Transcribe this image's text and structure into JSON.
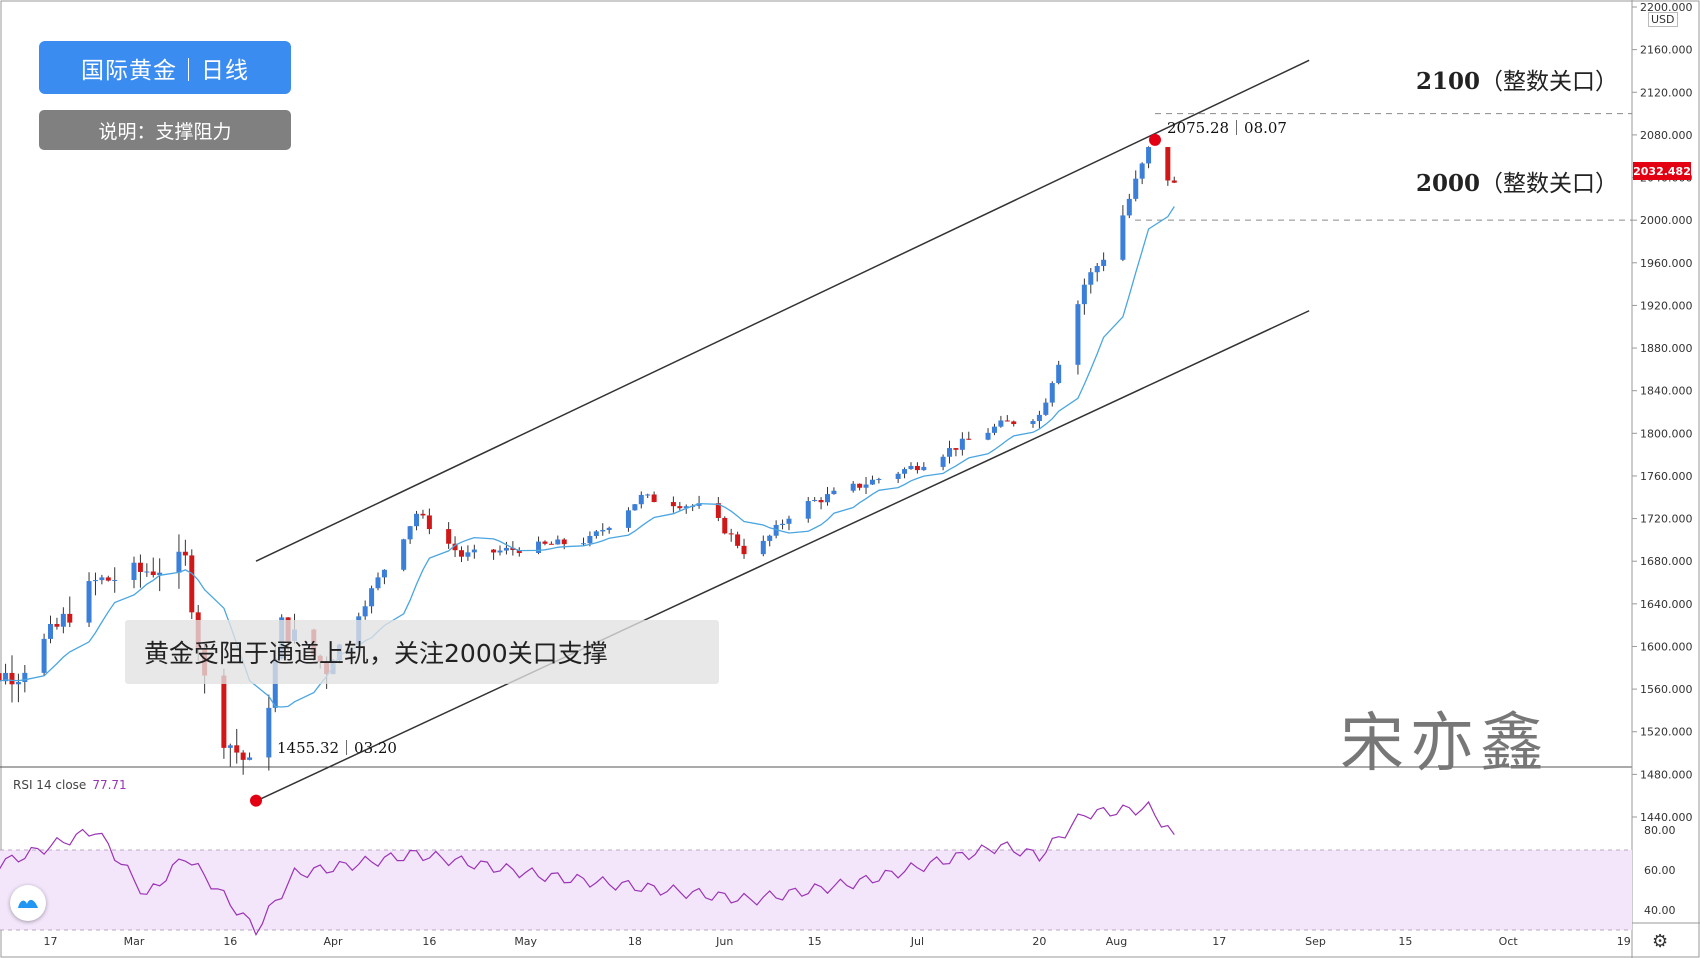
{
  "header": {
    "title_badge": "国际黄金｜日线",
    "note_badge": "说明：支撑阻力"
  },
  "annotations": {
    "callout_text": "黄金受阻于通道上轨，关注2000关口支撑",
    "level_2100": {
      "num": "2100",
      "text": "（整数关口）"
    },
    "level_2000": {
      "num": "2000",
      "text": "（整数关口）"
    },
    "high_point_label": "2075.28｜08.07",
    "low_point_label": "1455.32｜03.20",
    "watermark": "宋亦鑫"
  },
  "price_axis": {
    "currency": "USD",
    "current_price": "2032.482",
    "current_price_color": "#e30012"
  },
  "rsi": {
    "label": "RSI 14 close",
    "value": "77.71"
  },
  "colors": {
    "up": "#3b7fd9",
    "down": "#d01818",
    "ma": "#4ba6e0",
    "rsi_line": "#9b33b5",
    "rsi_band": "#f3e6fb",
    "badge_blue": "#3b8cf0",
    "badge_gray": "#808080",
    "marker": "#e30012"
  },
  "chart_data": [
    {
      "type": "candlestick",
      "title": "国际黄金｜日线",
      "y_axis": {
        "range": [
          1440,
          2200
        ],
        "ticks": [
          "2200.000",
          "2160.000",
          "2120.000",
          "2080.000",
          "2040.000",
          "2000.000",
          "1960.000",
          "1920.000",
          "1880.000",
          "1840.000",
          "1800.000",
          "1760.000",
          "1720.000",
          "1680.000",
          "1640.000",
          "1600.000",
          "1560.000",
          "1520.000",
          "1480.000",
          "1440.000"
        ]
      },
      "x_axis": {
        "tick_labels": [
          "17",
          "Mar",
          "16",
          "Apr",
          "16",
          "May",
          "18",
          "Jun",
          "15",
          "Jul",
          "20",
          "Aug",
          "17",
          "Sep",
          "15",
          "Oct",
          "19"
        ]
      },
      "anchor_points": [
        {
          "date": "01-31",
          "close": 1568
        },
        {
          "date": "02-12",
          "close": 1575
        },
        {
          "date": "02-24",
          "close": 1660
        },
        {
          "date": "03-09",
          "close": 1680
        },
        {
          "date": "03-13",
          "close": 1530
        },
        {
          "date": "03-20",
          "close": 1480,
          "low": 1455.32
        },
        {
          "date": "03-24",
          "close": 1620
        },
        {
          "date": "03-31",
          "close": 1580
        },
        {
          "date": "04-14",
          "close": 1725
        },
        {
          "date": "04-21",
          "close": 1685
        },
        {
          "date": "05-11",
          "close": 1700
        },
        {
          "date": "05-19",
          "close": 1740
        },
        {
          "date": "05-29",
          "close": 1730
        },
        {
          "date": "06-05",
          "close": 1683
        },
        {
          "date": "06-12",
          "close": 1730
        },
        {
          "date": "06-19",
          "close": 1745
        },
        {
          "date": "07-01",
          "close": 1770
        },
        {
          "date": "07-14",
          "close": 1808
        },
        {
          "date": "07-20",
          "close": 1817
        },
        {
          "date": "07-27",
          "close": 1940
        },
        {
          "date": "07-31",
          "close": 1975
        },
        {
          "date": "08-06",
          "close": 2065,
          "high": 2075.28
        },
        {
          "date": "08-10",
          "close": 2032
        }
      ],
      "highlights": [
        {
          "label": "2075.28｜08.07",
          "value": 2075.28
        },
        {
          "label": "1455.32｜03.20",
          "value": 1455.32
        }
      ],
      "levels": [
        {
          "label": "2100（整数关口）",
          "value": 2100
        },
        {
          "label": "2000（整数关口）",
          "value": 2000
        }
      ],
      "channel": {
        "upper": [
          {
            "date": "03-20",
            "value": 1680
          },
          {
            "date": "08-31",
            "value": 2150
          }
        ],
        "lower": [
          {
            "date": "03-20",
            "value": 1455
          },
          {
            "date": "08-31",
            "value": 1915
          }
        ]
      }
    },
    {
      "type": "line",
      "title": "RSI 14 close",
      "value_shown": 77.71,
      "y_axis": {
        "ticks": [
          "80.00",
          "60.00",
          "40.00"
        ]
      },
      "band": [
        30,
        70
      ],
      "anchor_points": [
        {
          "date": "02-03",
          "value": 56
        },
        {
          "date": "02-24",
          "value": 80
        },
        {
          "date": "03-03",
          "value": 47
        },
        {
          "date": "03-09",
          "value": 67
        },
        {
          "date": "03-20",
          "value": 30
        },
        {
          "date": "03-26",
          "value": 58
        },
        {
          "date": "04-14",
          "value": 68
        },
        {
          "date": "05-04",
          "value": 57
        },
        {
          "date": "06-05",
          "value": 45
        },
        {
          "date": "06-22",
          "value": 54
        },
        {
          "date": "07-14",
          "value": 72
        },
        {
          "date": "07-20",
          "value": 67
        },
        {
          "date": "07-27",
          "value": 88
        },
        {
          "date": "08-06",
          "value": 91
        },
        {
          "date": "08-10",
          "value": 77.71
        }
      ]
    }
  ]
}
